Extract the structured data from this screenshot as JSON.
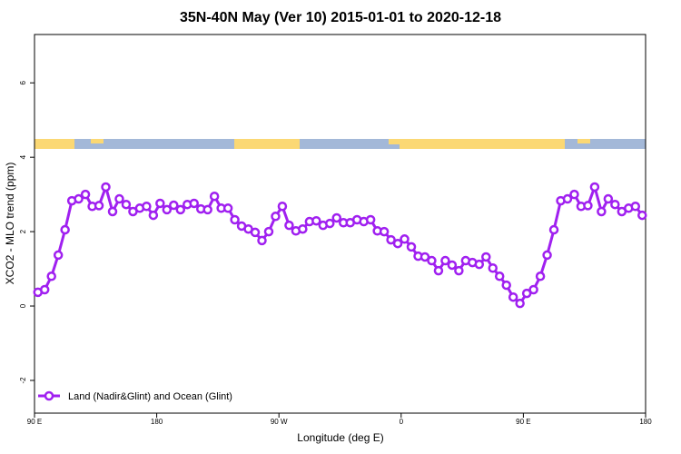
{
  "chart_data": {
    "type": "line",
    "title": "35N-40N May (Ver 10)   2015-01-01 to 2020-12-18",
    "x_label": "Longitude (deg E)",
    "y_label": "XCO2 - MLO trend (ppm)",
    "xlim": [
      90,
      540
    ],
    "ylim": [
      -2.88,
      7.3
    ],
    "xticks": [
      {
        "value": 90,
        "label": "90 E"
      },
      {
        "value": 180,
        "label": "180"
      },
      {
        "value": 270,
        "label": "90 W"
      },
      {
        "value": 360,
        "label": "0"
      },
      {
        "value": 450,
        "label": "90 E"
      },
      {
        "value": 540,
        "label": "180"
      }
    ],
    "yticks": [
      -2,
      0,
      2,
      4,
      6
    ],
    "legend": "bottom-left",
    "x": [
      92.5,
      97.5,
      102.5,
      107.5,
      112.5,
      117.5,
      122.5,
      127.5,
      132.5,
      137.5,
      142.5,
      147.5,
      152.5,
      157.5,
      162.5,
      167.5,
      172.5,
      177.5,
      182.5,
      187.5,
      192.5,
      197.5,
      202.5,
      207.5,
      212.5,
      217.5,
      222.5,
      227.5,
      232.5,
      237.5,
      242.5,
      247.5,
      252.5,
      257.5,
      262.5,
      267.5,
      272.5,
      277.5,
      282.5,
      287.5,
      292.5,
      297.5,
      302.5,
      307.5,
      312.5,
      317.5,
      322.5,
      327.5,
      332.5,
      337.5,
      342.5,
      347.5,
      352.5,
      357.5,
      362.5,
      367.5,
      372.5,
      377.5,
      382.5,
      387.5,
      392.5,
      397.5,
      402.5,
      407.5,
      412.5,
      417.5,
      422.5,
      427.5,
      432.5,
      437.5,
      442.5,
      447.5,
      452.5,
      457.5,
      462.5,
      467.5,
      472.5,
      477.5,
      482.5,
      487.5,
      492.5,
      497.5,
      502.5,
      507.5,
      512.5,
      517.5,
      522.5,
      527.5,
      532.5,
      537.5
    ],
    "series": [
      {
        "name": "Land (Nadir&Glint) and Ocean (Glint)",
        "color": "#a020f0",
        "values": [
          0.37,
          0.44,
          0.8,
          1.37,
          2.05,
          2.83,
          2.88,
          3.0,
          2.68,
          2.7,
          3.2,
          2.54,
          2.88,
          2.73,
          2.54,
          2.63,
          2.68,
          2.44,
          2.76,
          2.59,
          2.71,
          2.59,
          2.73,
          2.76,
          2.61,
          2.59,
          2.95,
          2.63,
          2.63,
          2.32,
          2.15,
          2.07,
          1.98,
          1.76,
          2.0,
          2.41,
          2.68,
          2.17,
          2.02,
          2.07,
          2.27,
          2.29,
          2.17,
          2.22,
          2.37,
          2.24,
          2.24,
          2.32,
          2.27,
          2.32,
          2.02,
          2.0,
          1.78,
          1.68,
          1.8,
          1.59,
          1.34,
          1.32,
          1.22,
          0.95,
          1.22,
          1.1,
          0.95,
          1.22,
          1.17,
          1.12,
          1.32,
          1.02,
          0.8,
          0.56,
          0.24,
          0.07,
          0.34,
          0.44,
          0.8,
          1.37,
          2.05,
          2.83,
          2.88,
          3.0,
          2.68,
          2.7,
          3.2,
          2.54,
          2.88,
          2.73,
          2.54,
          2.63,
          2.68,
          2.44
        ]
      }
    ]
  }
}
